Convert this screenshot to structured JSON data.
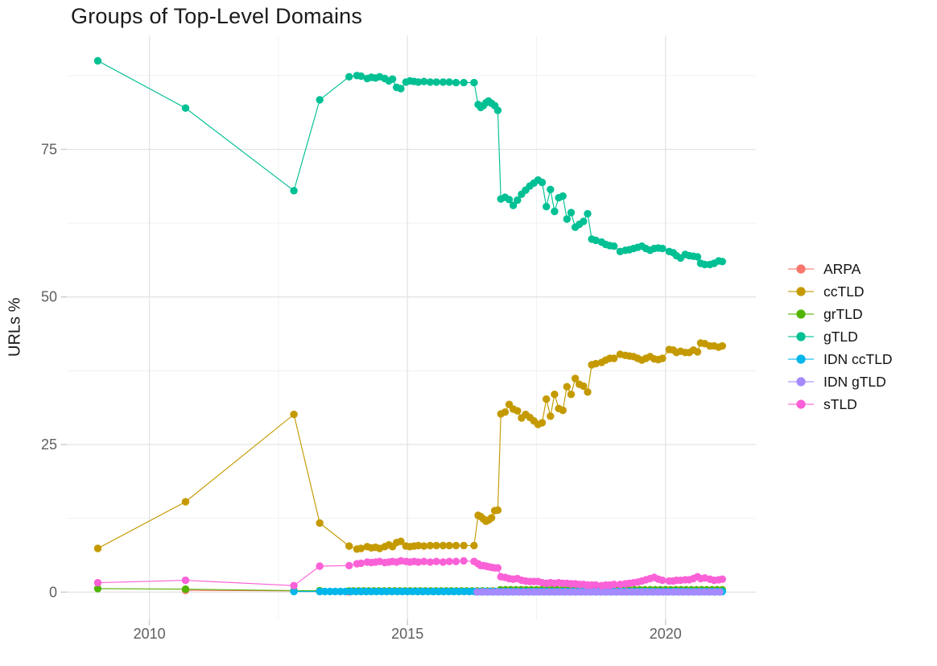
{
  "chart_data": {
    "type": "line",
    "title": "Groups of Top-Level Domains",
    "xlabel": "",
    "ylabel": "URLs %",
    "grid": true,
    "legend_position": "right",
    "xlim": [
      2008.4,
      2021.75
    ],
    "ylim": [
      -4.6,
      94.3
    ],
    "x_ticks": [
      {
        "value": 2010,
        "label": "2010"
      },
      {
        "value": 2015,
        "label": "2015"
      },
      {
        "value": 2020,
        "label": "2020"
      }
    ],
    "x_minor": [
      2012.5,
      2017.5
    ],
    "y_ticks": [
      {
        "value": 0,
        "label": "0"
      },
      {
        "value": 25,
        "label": "25"
      },
      {
        "value": 50,
        "label": "50"
      },
      {
        "value": 75,
        "label": "75"
      }
    ],
    "y_minor": [
      12.5,
      37.5,
      62.5,
      87.5
    ],
    "colors": {
      "major_grid": "#e3e3e3",
      "minor_grid": "#f0f0f0",
      "tick": "#cfcfcf",
      "axis_text": "#5f5f5f",
      "title_text": "#1a1a1a"
    },
    "series": [
      {
        "name": "ARPA",
        "color": "#F8766D",
        "points": [
          [
            2010.7,
            0.3
          ],
          [
            2012.8,
            0.2
          ],
          [
            2013.3,
            0.1
          ],
          [
            2013.87,
            0.05
          ]
        ]
      },
      {
        "name": "ccTLD",
        "color": "#C49A00",
        "points": [
          [
            2009.0,
            7.4
          ],
          [
            2010.7,
            15.3
          ],
          [
            2012.8,
            30.1
          ],
          [
            2013.3,
            11.7
          ],
          [
            2013.87,
            7.8
          ],
          [
            2014.02,
            7.3
          ],
          [
            2014.1,
            7.4
          ],
          [
            2014.22,
            7.7
          ],
          [
            2014.3,
            7.5
          ],
          [
            2014.38,
            7.6
          ],
          [
            2014.46,
            7.4
          ],
          [
            2014.56,
            7.7
          ],
          [
            2014.64,
            8.0
          ],
          [
            2014.71,
            7.7
          ],
          [
            2014.79,
            8.4
          ],
          [
            2014.87,
            8.6
          ],
          [
            2014.97,
            7.8
          ],
          [
            2015.05,
            7.7
          ],
          [
            2015.13,
            7.8
          ],
          [
            2015.21,
            7.9
          ],
          [
            2015.32,
            7.8
          ],
          [
            2015.44,
            7.9
          ],
          [
            2015.56,
            7.9
          ],
          [
            2015.69,
            7.9
          ],
          [
            2015.81,
            7.9
          ],
          [
            2015.94,
            7.9
          ],
          [
            2016.09,
            7.9
          ],
          [
            2016.29,
            7.9
          ],
          [
            2016.37,
            13.0
          ],
          [
            2016.42,
            12.8
          ],
          [
            2016.47,
            12.4
          ],
          [
            2016.52,
            12.0
          ],
          [
            2016.57,
            12.2
          ],
          [
            2016.63,
            12.6
          ],
          [
            2016.69,
            13.8
          ],
          [
            2016.75,
            13.9
          ],
          [
            2016.81,
            30.2
          ],
          [
            2016.89,
            30.5
          ],
          [
            2016.97,
            31.8
          ],
          [
            2017.05,
            31.0
          ],
          [
            2017.13,
            30.7
          ],
          [
            2017.21,
            29.5
          ],
          [
            2017.29,
            30.1
          ],
          [
            2017.37,
            29.6
          ],
          [
            2017.45,
            29.0
          ],
          [
            2017.53,
            28.4
          ],
          [
            2017.61,
            28.7
          ],
          [
            2017.69,
            32.7
          ],
          [
            2017.77,
            29.8
          ],
          [
            2017.85,
            33.5
          ],
          [
            2017.93,
            31.1
          ],
          [
            2018.01,
            30.8
          ],
          [
            2018.09,
            34.8
          ],
          [
            2018.17,
            33.5
          ],
          [
            2018.25,
            36.2
          ],
          [
            2018.33,
            35.2
          ],
          [
            2018.41,
            34.9
          ],
          [
            2018.49,
            33.9
          ],
          [
            2018.57,
            38.5
          ],
          [
            2018.65,
            38.7
          ],
          [
            2018.76,
            38.9
          ],
          [
            2018.84,
            39.3
          ],
          [
            2018.92,
            39.6
          ],
          [
            2019.0,
            39.6
          ],
          [
            2019.12,
            40.3
          ],
          [
            2019.22,
            40.1
          ],
          [
            2019.3,
            40.0
          ],
          [
            2019.38,
            39.9
          ],
          [
            2019.46,
            39.6
          ],
          [
            2019.54,
            39.3
          ],
          [
            2019.62,
            39.6
          ],
          [
            2019.7,
            39.9
          ],
          [
            2019.78,
            39.5
          ],
          [
            2019.86,
            39.4
          ],
          [
            2019.94,
            39.6
          ],
          [
            2020.07,
            41.1
          ],
          [
            2020.15,
            41.0
          ],
          [
            2020.21,
            40.6
          ],
          [
            2020.29,
            40.8
          ],
          [
            2020.38,
            40.6
          ],
          [
            2020.46,
            40.6
          ],
          [
            2020.54,
            41.0
          ],
          [
            2020.62,
            40.7
          ],
          [
            2020.68,
            42.2
          ],
          [
            2020.76,
            42.1
          ],
          [
            2020.86,
            41.7
          ],
          [
            2020.94,
            41.7
          ],
          [
            2021.03,
            41.5
          ],
          [
            2021.1,
            41.7
          ]
        ]
      },
      {
        "name": "grTLD",
        "color": "#53B400",
        "points": [
          [
            2009.0,
            0.6
          ],
          [
            2010.7,
            0.5
          ],
          [
            2012.8,
            0.25
          ],
          [
            2013.3,
            0.25
          ],
          [
            2013.87,
            0.2
          ]
        ],
        "runs": [
          {
            "from": 2013.95,
            "to": 2016.7,
            "step": 0.1,
            "y": 0.2
          },
          {
            "from": 2016.8,
            "to": 2021.1,
            "step": 0.1,
            "y": 0.4
          }
        ]
      },
      {
        "name": "gTLD",
        "color": "#00C094",
        "points": [
          [
            2009.0,
            90.0
          ],
          [
            2010.7,
            82.0
          ],
          [
            2012.8,
            68.0
          ],
          [
            2013.3,
            83.4
          ],
          [
            2013.87,
            87.3
          ],
          [
            2014.02,
            87.5
          ],
          [
            2014.1,
            87.4
          ],
          [
            2014.22,
            87.0
          ],
          [
            2014.3,
            87.2
          ],
          [
            2014.38,
            87.1
          ],
          [
            2014.46,
            87.3
          ],
          [
            2014.56,
            87.0
          ],
          [
            2014.64,
            86.6
          ],
          [
            2014.71,
            86.9
          ],
          [
            2014.79,
            85.5
          ],
          [
            2014.87,
            85.3
          ],
          [
            2014.97,
            86.4
          ],
          [
            2015.05,
            86.6
          ],
          [
            2015.13,
            86.5
          ],
          [
            2015.21,
            86.4
          ],
          [
            2015.32,
            86.5
          ],
          [
            2015.44,
            86.4
          ],
          [
            2015.56,
            86.4
          ],
          [
            2015.69,
            86.4
          ],
          [
            2015.81,
            86.4
          ],
          [
            2015.94,
            86.3
          ],
          [
            2016.09,
            86.3
          ],
          [
            2016.29,
            86.3
          ],
          [
            2016.37,
            82.6
          ],
          [
            2016.42,
            82.1
          ],
          [
            2016.47,
            82.4
          ],
          [
            2016.52,
            82.9
          ],
          [
            2016.57,
            83.2
          ],
          [
            2016.63,
            82.8
          ],
          [
            2016.69,
            82.4
          ],
          [
            2016.75,
            81.6
          ],
          [
            2016.81,
            66.6
          ],
          [
            2016.89,
            66.9
          ],
          [
            2016.97,
            66.5
          ],
          [
            2017.05,
            65.5
          ],
          [
            2017.13,
            66.4
          ],
          [
            2017.21,
            67.4
          ],
          [
            2017.29,
            68.1
          ],
          [
            2017.37,
            68.8
          ],
          [
            2017.45,
            69.3
          ],
          [
            2017.53,
            69.8
          ],
          [
            2017.61,
            69.4
          ],
          [
            2017.69,
            65.3
          ],
          [
            2017.77,
            68.2
          ],
          [
            2017.85,
            64.5
          ],
          [
            2017.93,
            66.8
          ],
          [
            2018.01,
            67.1
          ],
          [
            2018.09,
            63.2
          ],
          [
            2018.17,
            64.3
          ],
          [
            2018.25,
            61.8
          ],
          [
            2018.33,
            62.3
          ],
          [
            2018.41,
            62.8
          ],
          [
            2018.49,
            64.1
          ],
          [
            2018.57,
            59.8
          ],
          [
            2018.65,
            59.6
          ],
          [
            2018.76,
            59.3
          ],
          [
            2018.84,
            58.9
          ],
          [
            2018.92,
            58.7
          ],
          [
            2019.0,
            58.6
          ],
          [
            2019.12,
            57.7
          ],
          [
            2019.22,
            57.9
          ],
          [
            2019.3,
            58.0
          ],
          [
            2019.38,
            58.2
          ],
          [
            2019.46,
            58.4
          ],
          [
            2019.54,
            58.6
          ],
          [
            2019.62,
            58.2
          ],
          [
            2019.7,
            57.9
          ],
          [
            2019.78,
            58.2
          ],
          [
            2019.86,
            58.3
          ],
          [
            2019.94,
            58.2
          ],
          [
            2020.07,
            57.7
          ],
          [
            2020.15,
            57.5
          ],
          [
            2020.21,
            57.0
          ],
          [
            2020.29,
            56.6
          ],
          [
            2020.38,
            57.2
          ],
          [
            2020.46,
            57.0
          ],
          [
            2020.54,
            56.9
          ],
          [
            2020.62,
            56.8
          ],
          [
            2020.68,
            55.7
          ],
          [
            2020.76,
            55.5
          ],
          [
            2020.86,
            55.5
          ],
          [
            2020.94,
            55.7
          ],
          [
            2021.03,
            56.1
          ],
          [
            2021.1,
            56.0
          ]
        ]
      },
      {
        "name": "IDN ccTLD",
        "color": "#00B6EB",
        "points": [
          [
            2012.8,
            0.1
          ],
          [
            2013.3,
            0.1
          ]
        ],
        "runs": [
          {
            "from": 2013.4,
            "to": 2021.1,
            "step": 0.1,
            "y": 0.1
          }
        ]
      },
      {
        "name": "IDN gTLD",
        "color": "#A58AFF",
        "points": [],
        "runs": [
          {
            "from": 2016.35,
            "to": 2021.1,
            "step": 0.1,
            "y": 0.02
          }
        ]
      },
      {
        "name": "sTLD",
        "color": "#FB61D7",
        "points": [
          [
            2009.0,
            1.6
          ],
          [
            2010.7,
            2.0
          ],
          [
            2012.8,
            1.1
          ],
          [
            2013.3,
            4.4
          ],
          [
            2013.87,
            4.5
          ],
          [
            2014.02,
            4.8
          ],
          [
            2014.1,
            4.9
          ],
          [
            2014.22,
            5.1
          ],
          [
            2014.3,
            5.0
          ],
          [
            2014.38,
            5.1
          ],
          [
            2014.46,
            5.2
          ],
          [
            2014.56,
            5.0
          ],
          [
            2014.64,
            5.1
          ],
          [
            2014.71,
            5.2
          ],
          [
            2014.79,
            5.1
          ],
          [
            2014.87,
            5.3
          ],
          [
            2014.97,
            5.2
          ],
          [
            2015.05,
            5.1
          ],
          [
            2015.13,
            5.2
          ],
          [
            2015.21,
            5.1
          ],
          [
            2015.32,
            5.2
          ],
          [
            2015.44,
            5.1
          ],
          [
            2015.56,
            5.2
          ],
          [
            2015.69,
            5.1
          ],
          [
            2015.81,
            5.2
          ],
          [
            2015.94,
            5.2
          ],
          [
            2016.09,
            5.3
          ],
          [
            2016.29,
            5.2
          ],
          [
            2016.37,
            4.8
          ],
          [
            2016.42,
            4.5
          ],
          [
            2016.47,
            4.5
          ],
          [
            2016.52,
            4.4
          ],
          [
            2016.57,
            4.3
          ],
          [
            2016.63,
            4.2
          ],
          [
            2016.69,
            4.1
          ],
          [
            2016.75,
            4.1
          ],
          [
            2016.81,
            2.6
          ],
          [
            2016.89,
            2.5
          ],
          [
            2016.97,
            2.3
          ],
          [
            2017.05,
            2.2
          ],
          [
            2017.13,
            2.3
          ],
          [
            2017.21,
            2.0
          ],
          [
            2017.29,
            1.9
          ],
          [
            2017.37,
            1.8
          ],
          [
            2017.45,
            1.8
          ],
          [
            2017.53,
            1.8
          ],
          [
            2017.61,
            1.6
          ],
          [
            2017.69,
            1.5
          ],
          [
            2017.77,
            1.6
          ],
          [
            2017.85,
            1.5
          ],
          [
            2017.93,
            1.6
          ],
          [
            2018.01,
            1.5
          ],
          [
            2018.09,
            1.5
          ],
          [
            2018.17,
            1.4
          ],
          [
            2018.25,
            1.4
          ],
          [
            2018.33,
            1.3
          ],
          [
            2018.41,
            1.3
          ],
          [
            2018.49,
            1.2
          ],
          [
            2018.57,
            1.2
          ],
          [
            2018.65,
            1.2
          ],
          [
            2018.76,
            1.1
          ],
          [
            2018.84,
            1.2
          ],
          [
            2018.92,
            1.2
          ],
          [
            2019.0,
            1.3
          ],
          [
            2019.12,
            1.3
          ],
          [
            2019.22,
            1.4
          ],
          [
            2019.3,
            1.5
          ],
          [
            2019.38,
            1.6
          ],
          [
            2019.46,
            1.7
          ],
          [
            2019.54,
            1.9
          ],
          [
            2019.62,
            2.1
          ],
          [
            2019.7,
            2.3
          ],
          [
            2019.78,
            2.5
          ],
          [
            2019.86,
            2.2
          ],
          [
            2019.94,
            2.0
          ],
          [
            2020.07,
            1.9
          ],
          [
            2020.15,
            1.9
          ],
          [
            2020.21,
            2.0
          ],
          [
            2020.29,
            2.0
          ],
          [
            2020.38,
            2.1
          ],
          [
            2020.46,
            2.1
          ],
          [
            2020.54,
            2.3
          ],
          [
            2020.62,
            2.6
          ],
          [
            2020.68,
            2.3
          ],
          [
            2020.76,
            2.4
          ],
          [
            2020.86,
            2.2
          ],
          [
            2020.94,
            2.0
          ],
          [
            2021.03,
            2.1
          ],
          [
            2021.1,
            2.2
          ]
        ]
      }
    ]
  }
}
